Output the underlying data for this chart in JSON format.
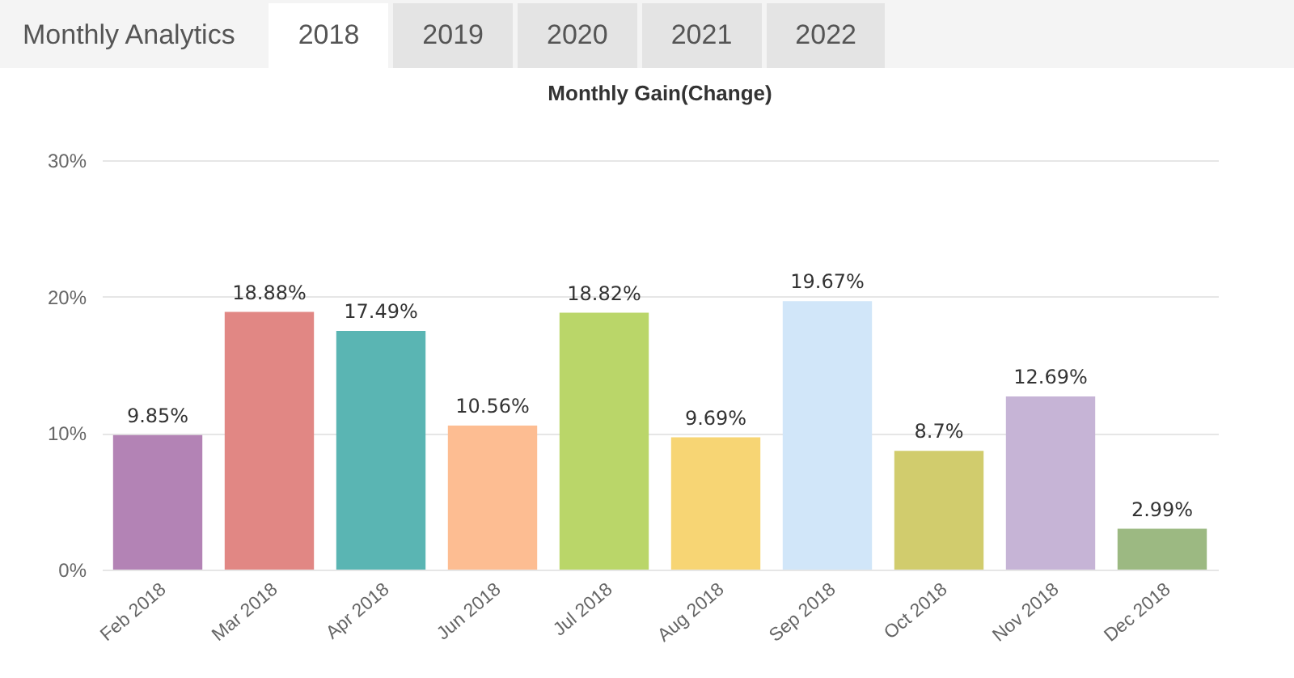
{
  "chart_data": {
    "type": "bar",
    "title": "Monthly Gain(Change)",
    "annotations": [
      "Monthly Analytics",
      "2018",
      "2019",
      "2020",
      "2021",
      "2022"
    ],
    "categories": [
      "Feb 2018",
      "Mar 2018",
      "Apr 2018",
      "Jun 2018",
      "Jul 2018",
      "Aug 2018",
      "Sep 2018",
      "Oct 2018",
      "Nov 2018",
      "Dec 2018"
    ],
    "values": [
      9.85,
      18.88,
      17.49,
      10.56,
      18.82,
      9.69,
      19.67,
      8.7,
      12.69,
      2.99
    ],
    "value_labels": [
      "9.85%",
      "18.88%",
      "17.49%",
      "10.56%",
      "18.82%",
      "9.69%",
      "19.67%",
      "8.7%",
      "12.69%",
      "2.99%"
    ],
    "colors": [
      "#b383b5",
      "#e18784",
      "#5ab5b3",
      "#fdbd92",
      "#bad669",
      "#f7d574",
      "#d1e6f9",
      "#d1cc6d",
      "#c6b4d6",
      "#9cb982"
    ],
    "ylim": [
      0,
      30
    ],
    "yticks": [
      {
        "value": 0,
        "label": "0%"
      },
      {
        "value": 10,
        "label": "10%"
      },
      {
        "value": 20,
        "label": "20%"
      },
      {
        "value": 30,
        "label": "30%"
      }
    ],
    "grid": "y"
  }
}
